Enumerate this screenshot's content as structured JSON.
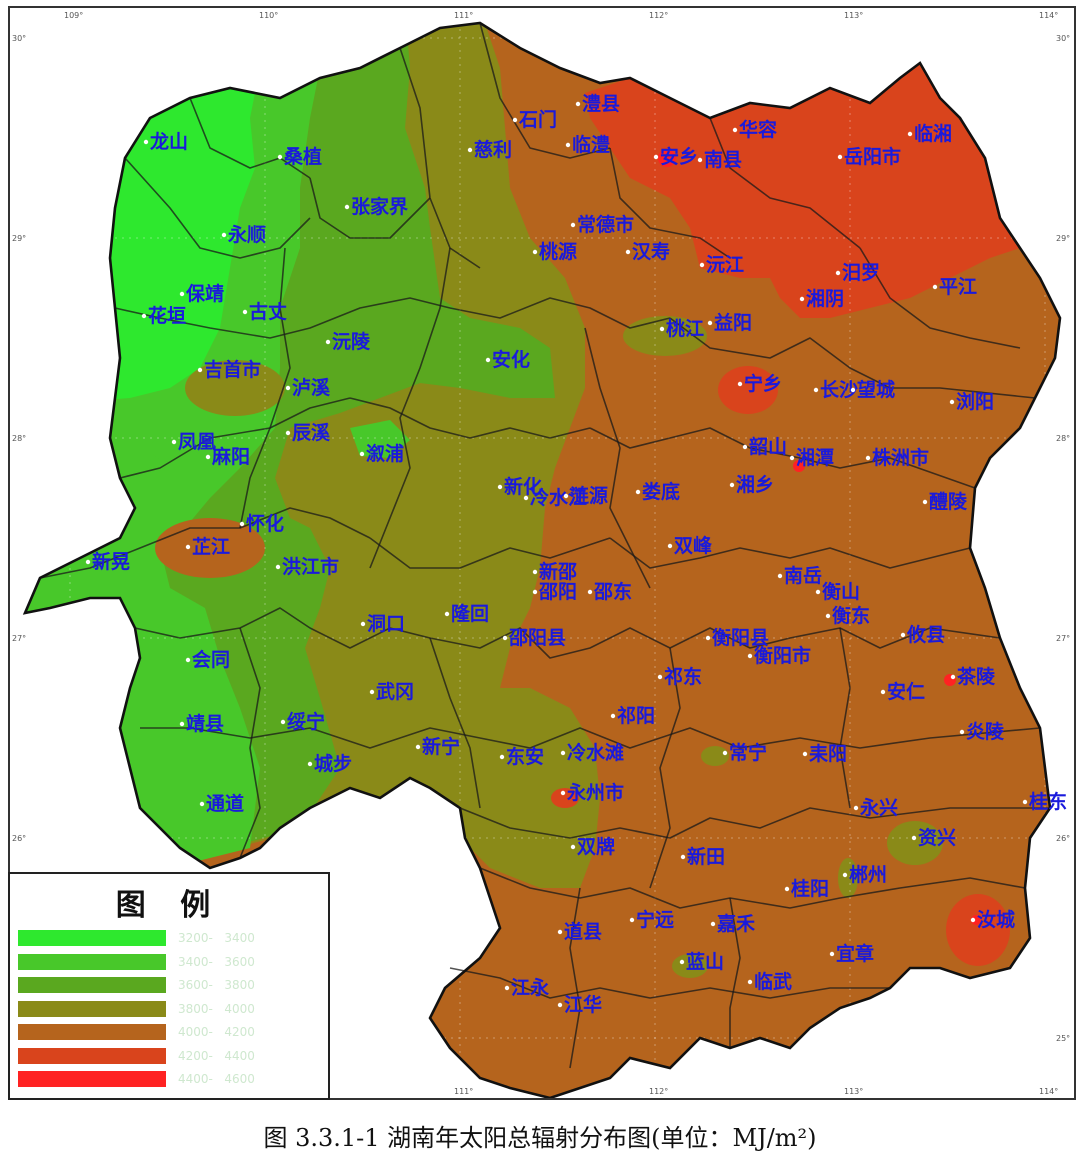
{
  "map": {
    "cities": [
      {
        "id": "longshan",
        "label": "龙山"
      },
      {
        "id": "sangzhi",
        "label": "桑植"
      },
      {
        "id": "zhangjiajie",
        "label": "张家界"
      },
      {
        "id": "cili",
        "label": "慈利"
      },
      {
        "id": "shimen",
        "label": "石门"
      },
      {
        "id": "lixian",
        "label": "澧县"
      },
      {
        "id": "linli",
        "label": "临澧"
      },
      {
        "id": "anxiang",
        "label": "安乡"
      },
      {
        "id": "nanxian",
        "label": "南县"
      },
      {
        "id": "huarong",
        "label": "华容"
      },
      {
        "id": "yueyang",
        "label": "岳阳市"
      },
      {
        "id": "linxiang",
        "label": "临湘"
      },
      {
        "id": "yongshun",
        "label": "永顺"
      },
      {
        "id": "changde",
        "label": "常德市"
      },
      {
        "id": "taoyuan",
        "label": "桃源"
      },
      {
        "id": "hanshou",
        "label": "汉寿"
      },
      {
        "id": "yuanjiang",
        "label": "沅江"
      },
      {
        "id": "miluo",
        "label": "汨罗"
      },
      {
        "id": "xiangyin",
        "label": "湘阴"
      },
      {
        "id": "pingjiang",
        "label": "平江"
      },
      {
        "id": "baojing",
        "label": "保靖"
      },
      {
        "id": "guzhang",
        "label": "古丈"
      },
      {
        "id": "huayuan",
        "label": "花垣"
      },
      {
        "id": "yuanling",
        "label": "沅陵"
      },
      {
        "id": "taojiang",
        "label": "桃江"
      },
      {
        "id": "yiyang",
        "label": "益阳"
      },
      {
        "id": "jishou",
        "label": "吉首市"
      },
      {
        "id": "luxi",
        "label": "泸溪"
      },
      {
        "id": "anhua",
        "label": "安化"
      },
      {
        "id": "ningxiang",
        "label": "宁乡"
      },
      {
        "id": "changsha",
        "label": "长沙"
      },
      {
        "id": "wangcheng",
        "label": "望城"
      },
      {
        "id": "liuyang",
        "label": "浏阳"
      },
      {
        "id": "fenghuang",
        "label": "凤凰"
      },
      {
        "id": "mayang",
        "label": "麻阳"
      },
      {
        "id": "chenxi",
        "label": "辰溪"
      },
      {
        "id": "xupu",
        "label": "溆浦"
      },
      {
        "id": "shaoshan",
        "label": "韶山"
      },
      {
        "id": "xiangtan",
        "label": "湘潭"
      },
      {
        "id": "zhuzhou",
        "label": "株洲市"
      },
      {
        "id": "xinhua",
        "label": "新化"
      },
      {
        "id": "lengshuijiang",
        "label": "冷水江"
      },
      {
        "id": "lianyuan",
        "label": "涟源"
      },
      {
        "id": "loudi",
        "label": "娄底"
      },
      {
        "id": "xiangxiang",
        "label": "湘乡"
      },
      {
        "id": "liling",
        "label": "醴陵"
      },
      {
        "id": "huaihua",
        "label": "怀化"
      },
      {
        "id": "zhijiang",
        "label": "芷江"
      },
      {
        "id": "xinhuang",
        "label": "新晃"
      },
      {
        "id": "hongjiang",
        "label": "洪江市"
      },
      {
        "id": "shuangfeng",
        "label": "双峰"
      },
      {
        "id": "xinshao",
        "label": "新邵"
      },
      {
        "id": "shaoyang",
        "label": "邵阳"
      },
      {
        "id": "shaodong",
        "label": "邵东"
      },
      {
        "id": "nanyue",
        "label": "南岳"
      },
      {
        "id": "hengshan",
        "label": "衡山"
      },
      {
        "id": "hengdong",
        "label": "衡东"
      },
      {
        "id": "youxian",
        "label": "攸县"
      },
      {
        "id": "dongkou",
        "label": "洞口"
      },
      {
        "id": "longhui",
        "label": "隆回"
      },
      {
        "id": "shaoyangxian",
        "label": "邵阳县"
      },
      {
        "id": "hengyangxian",
        "label": "衡阳县"
      },
      {
        "id": "hengyangshi",
        "label": "衡阳市"
      },
      {
        "id": "chaling",
        "label": "茶陵"
      },
      {
        "id": "huitong",
        "label": "会同"
      },
      {
        "id": "wugang",
        "label": "武冈"
      },
      {
        "id": "qidong",
        "label": "祁东"
      },
      {
        "id": "anren",
        "label": "安仁"
      },
      {
        "id": "jingxian",
        "label": "靖县"
      },
      {
        "id": "suining",
        "label": "绥宁"
      },
      {
        "id": "qiyang",
        "label": "祁阳"
      },
      {
        "id": "yanling",
        "label": "炎陵"
      },
      {
        "id": "chengbu",
        "label": "城步"
      },
      {
        "id": "xinning",
        "label": "新宁"
      },
      {
        "id": "dongan",
        "label": "东安"
      },
      {
        "id": "lengshuitan",
        "label": "冷水滩"
      },
      {
        "id": "changning",
        "label": "常宁"
      },
      {
        "id": "leiyang",
        "label": "耒阳"
      },
      {
        "id": "yongzhou",
        "label": "永州市"
      },
      {
        "id": "tongdao",
        "label": "通道"
      },
      {
        "id": "yongxing",
        "label": "永兴"
      },
      {
        "id": "zixing",
        "label": "资兴"
      },
      {
        "id": "guidong",
        "label": "桂东"
      },
      {
        "id": "shuangpai",
        "label": "双牌"
      },
      {
        "id": "xintian",
        "label": "新田"
      },
      {
        "id": "chenzhou",
        "label": "郴州"
      },
      {
        "id": "guiyang",
        "label": "桂阳"
      },
      {
        "id": "ningyuan",
        "label": "宁远"
      },
      {
        "id": "jiahe",
        "label": "嘉禾"
      },
      {
        "id": "daoxian",
        "label": "道县"
      },
      {
        "id": "rucheng",
        "label": "汝城"
      },
      {
        "id": "yizhang",
        "label": "宜章"
      },
      {
        "id": "lanshan",
        "label": "蓝山"
      },
      {
        "id": "linwu",
        "label": "临武"
      },
      {
        "id": "jiangyong",
        "label": "江永"
      },
      {
        "id": "jianghua",
        "label": "江华"
      }
    ],
    "lon_ticks_top": [
      "109°",
      "110°",
      "111°",
      "112°",
      "113°",
      "114°"
    ],
    "lon_ticks_bottom": [
      "111°",
      "112°",
      "113°",
      "114°"
    ],
    "lat_ticks_left": [
      "30°",
      "29°",
      "28°",
      "27°",
      "26°"
    ],
    "lat_ticks_right": [
      "30°",
      "29°",
      "28°",
      "27°",
      "26°",
      "25°"
    ]
  },
  "legend": {
    "title": "图 例",
    "items": [
      {
        "range": "3200-   3400",
        "color": "#2ee82e"
      },
      {
        "range": "3400-   3600",
        "color": "#48c82a"
      },
      {
        "range": "3600-   3800",
        "color": "#5aa81f"
      },
      {
        "range": "3800-   4000",
        "color": "#8a8a18"
      },
      {
        "range": "4000-   4200",
        "color": "#b5641d"
      },
      {
        "range": "4200-   4400",
        "color": "#d9441c"
      },
      {
        "range": "4400-   4600",
        "color": "#ff2222"
      }
    ]
  },
  "caption": {
    "text": "图 3.3.1-1    湖南年太阳总辐射分布图(单位：MJ/m²)"
  }
}
